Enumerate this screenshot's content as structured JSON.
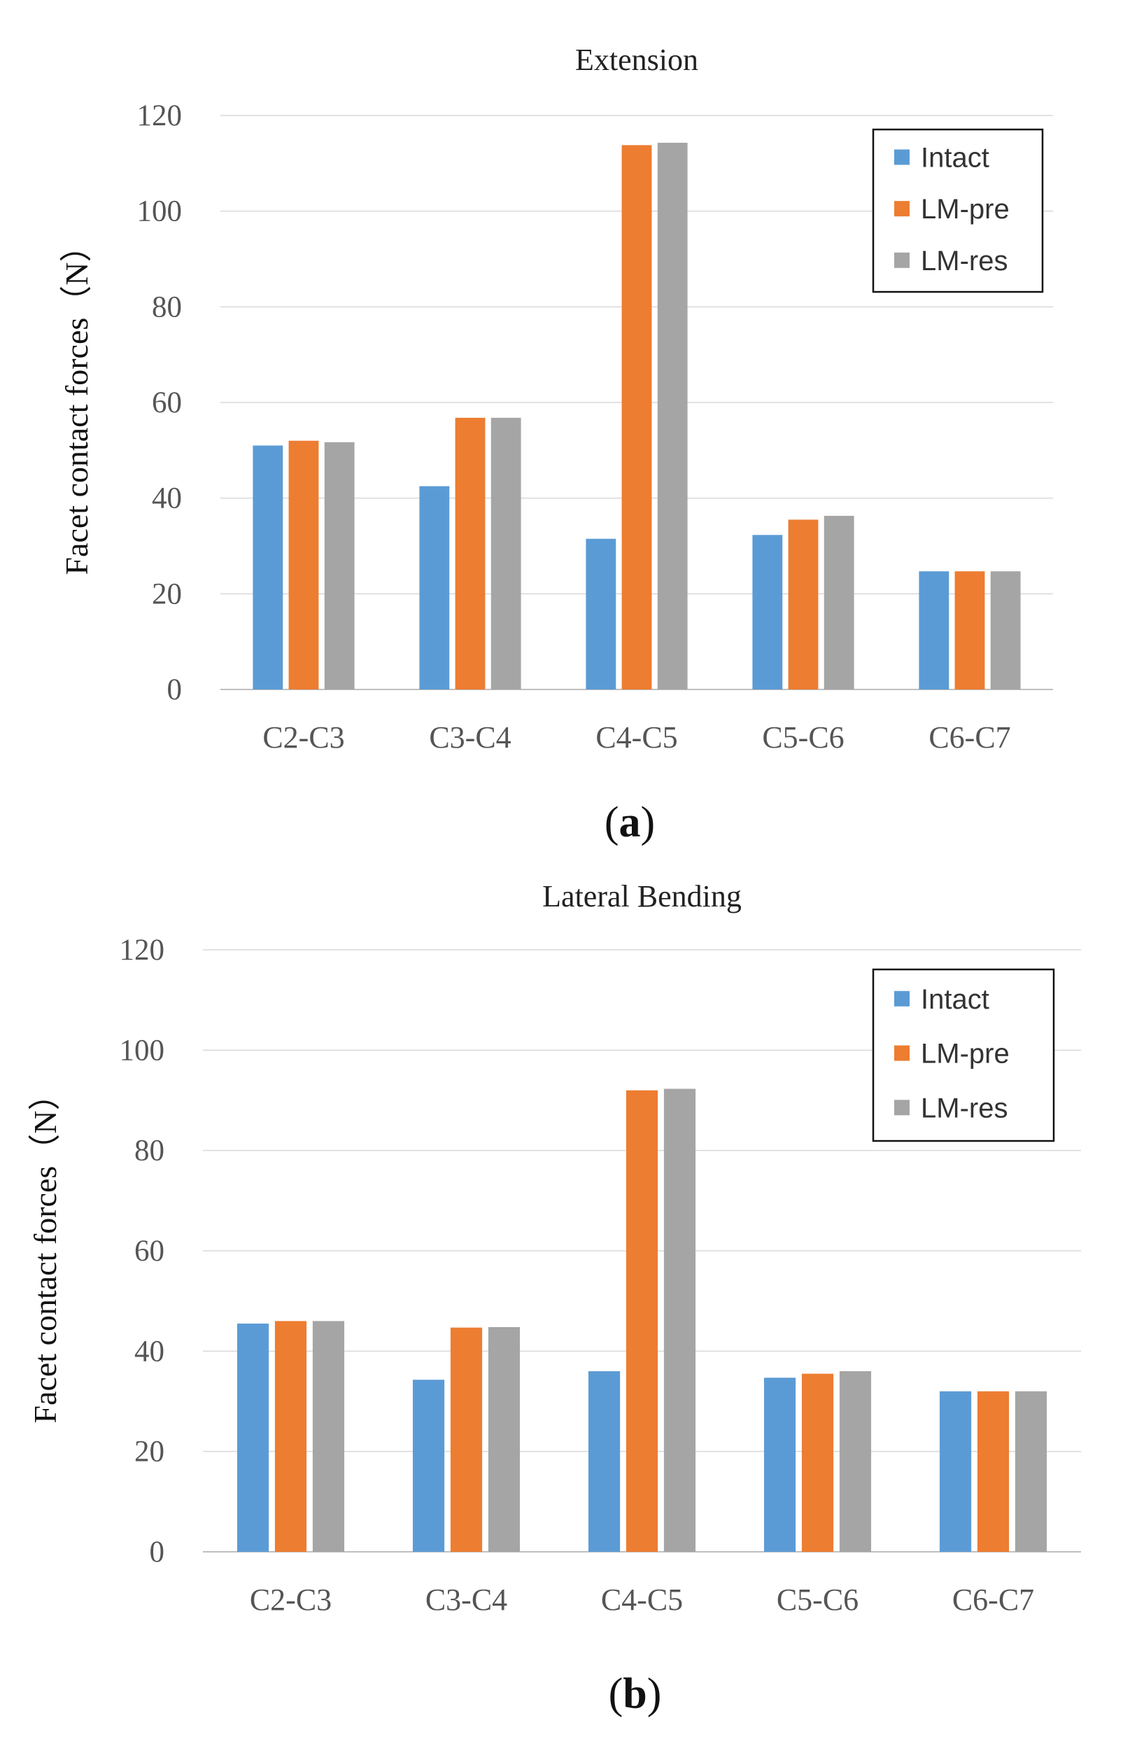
{
  "chart_data": [
    {
      "type": "bar",
      "title": "Extension",
      "panel_label": "(a)",
      "panel_open": "(",
      "panel_letter": "a",
      "panel_close": ")",
      "ylabel": "Facet contact forces（N）",
      "ylim": [
        0,
        120
      ],
      "yticks": [
        0,
        20,
        40,
        60,
        80,
        100,
        120
      ],
      "categories": [
        "C2-C3",
        "C3-C4",
        "C4-C5",
        "C5-C6",
        "C6-C7"
      ],
      "series": [
        {
          "name": "Intact",
          "color": "#5b9bd5",
          "values": [
            51,
            42.5,
            31.5,
            32.3,
            24.7
          ]
        },
        {
          "name": "LM-pre",
          "color": "#ed7d31",
          "values": [
            52,
            56.8,
            113.8,
            35.5,
            24.7
          ]
        },
        {
          "name": "LM-res",
          "color": "#a5a5a5",
          "values": [
            51.7,
            56.8,
            114.3,
            36.3,
            24.7
          ]
        }
      ],
      "legend_position": "top-right",
      "grid": true
    },
    {
      "type": "bar",
      "title": "Lateral Bending",
      "panel_label": "(b)",
      "panel_open": "(",
      "panel_letter": "b",
      "panel_close": ")",
      "ylabel": "Facet contact forces（N）",
      "ylim": [
        0,
        120
      ],
      "yticks": [
        0,
        20,
        40,
        60,
        80,
        100,
        120
      ],
      "categories": [
        "C2-C3",
        "C3-C4",
        "C4-C5",
        "C5-C6",
        "C6-C7"
      ],
      "series": [
        {
          "name": "Intact",
          "color": "#5b9bd5",
          "values": [
            45.5,
            34.3,
            36,
            34.7,
            32
          ]
        },
        {
          "name": "LM-pre",
          "color": "#ed7d31",
          "values": [
            46,
            44.7,
            92,
            35.5,
            32
          ]
        },
        {
          "name": "LM-res",
          "color": "#a5a5a5",
          "values": [
            46,
            44.8,
            92.3,
            36,
            32
          ]
        }
      ],
      "legend_position": "top-right",
      "grid": true
    }
  ]
}
